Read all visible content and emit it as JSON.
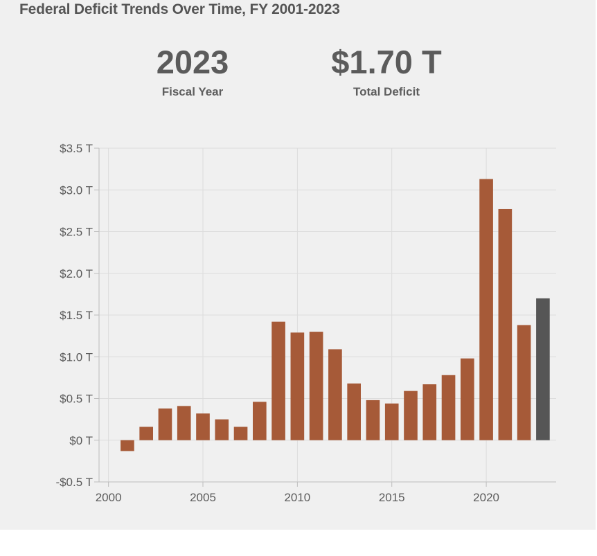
{
  "title": "Federal Deficit Trends Over Time, FY 2001-2023",
  "summary": {
    "year_value": "2023",
    "year_label": "Fiscal Year",
    "deficit_value": "$1.70 T",
    "deficit_label": "Total Deficit"
  },
  "chart_data": {
    "type": "bar",
    "title": "Federal Deficit Trends Over Time, FY 2001-2023",
    "xlabel": "",
    "ylabel": "",
    "x": [
      2001,
      2002,
      2003,
      2004,
      2005,
      2006,
      2007,
      2008,
      2009,
      2010,
      2011,
      2012,
      2013,
      2014,
      2015,
      2016,
      2017,
      2018,
      2019,
      2020,
      2021,
      2022,
      2023
    ],
    "values": [
      -0.13,
      0.16,
      0.38,
      0.41,
      0.32,
      0.25,
      0.16,
      0.46,
      1.42,
      1.29,
      1.3,
      1.09,
      0.68,
      0.48,
      0.44,
      0.59,
      0.67,
      0.78,
      0.98,
      3.13,
      2.77,
      1.38,
      1.7
    ],
    "highlight_year": 2023,
    "xlim": [
      1999.5,
      2023.7
    ],
    "ylim": [
      -0.5,
      3.5
    ],
    "xticks": [
      2000,
      2005,
      2010,
      2015,
      2020
    ],
    "xtick_labels": [
      "2000",
      "2005",
      "2010",
      "2015",
      "2020"
    ],
    "yticks": [
      -0.5,
      0,
      0.5,
      1.0,
      1.5,
      2.0,
      2.5,
      3.0,
      3.5
    ],
    "ytick_labels": [
      "-$0.5 T",
      "$0 T",
      "$0.5 T",
      "$1.0 T",
      "$1.5 T",
      "$2.0 T",
      "$2.5 T",
      "$3.0 T",
      "$3.5 T"
    ],
    "grid": true,
    "colors": {
      "bar": "#a65a38",
      "highlight": "#565656",
      "grid": "#dcdcdc",
      "axis": "#bdbdbd"
    }
  }
}
